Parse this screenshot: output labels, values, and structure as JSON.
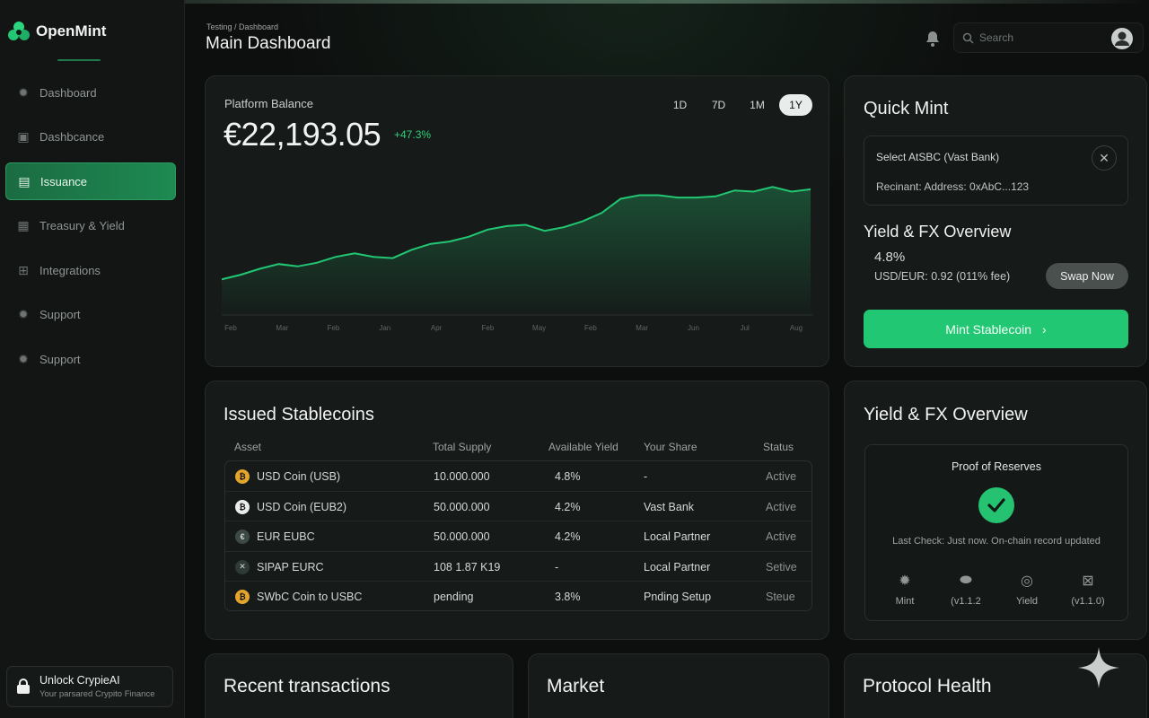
{
  "app": {
    "name": "OpenMint"
  },
  "sidebar": {
    "items": [
      {
        "label": "Dashboard",
        "icon": "gear-icon"
      },
      {
        "label": "Dashbcance",
        "icon": "wallet-icon"
      },
      {
        "label": "Issuance",
        "icon": "document-icon",
        "active": true
      },
      {
        "label": "Treasury & Yield",
        "icon": "vault-icon"
      },
      {
        "label": "Integrations",
        "icon": "plug-icon"
      },
      {
        "label": "Support",
        "icon": "gear-icon"
      },
      {
        "label": "Support",
        "icon": "gear-icon"
      }
    ],
    "unlock": {
      "title": "Unlock CrypieAI",
      "subtitle": "Your parsared Crypito Finance"
    }
  },
  "header": {
    "breadcrumb": "Testing / Dashboard",
    "title": "Main Dashboard",
    "search_placeholder": "Search"
  },
  "balance": {
    "label": "Platform Balance",
    "value": "€22,193.05",
    "change": "+47.3%",
    "ranges": [
      "1D",
      "7D",
      "1M",
      "1Y"
    ],
    "active_range": "1Y",
    "x_labels": [
      "Feb",
      "Mar",
      "Feb",
      "Jan",
      "Apr",
      "Feb",
      "May",
      "Feb",
      "Mar",
      "Jun",
      "Jul",
      "Aug"
    ]
  },
  "chart_data": {
    "type": "area",
    "title": "Platform Balance",
    "categories": [
      "Feb",
      "Mar",
      "Feb",
      "Jan",
      "Apr",
      "Feb",
      "May",
      "Feb",
      "Mar",
      "Jun",
      "Jul",
      "Aug"
    ],
    "points": [
      30,
      34,
      39,
      43,
      41,
      44,
      49,
      52,
      49,
      48,
      55,
      60,
      62,
      66,
      72,
      75,
      76,
      71,
      74,
      79,
      86,
      98,
      101,
      101,
      99,
      99,
      100,
      105,
      104,
      108,
      104,
      106
    ],
    "color": "#22c773"
  },
  "quick_mint": {
    "title": "Quick Mint",
    "select_label": "Select AtSBC (Vast Bank)",
    "recipient": "Recinant: Address: 0xAbC...123",
    "yield_title": "Yield & FX Overview",
    "yield_rate": "4.8%",
    "fx_rate": "USD/EUR: 0.92 (011% fee)",
    "swap_label": "Swap Now",
    "mint_label": "Mint Stablecoin"
  },
  "issued": {
    "title": "Issued Stablecoins",
    "columns": [
      "Asset",
      "Total Supply",
      "Available Yield",
      "Your Share",
      "Status"
    ],
    "rows": [
      {
        "asset": "USD Coin (USB)",
        "supply": "10.000.000",
        "yield": "4.8%",
        "share": "-",
        "status": "Active",
        "coin_color": "#e3a52c",
        "coin_glyph": "₿"
      },
      {
        "asset": "USD Coin (EUB2)",
        "supply": "50.000.000",
        "yield": "4.2%",
        "share": "Vast Bank",
        "status": "Active",
        "coin_color": "#e9ecea",
        "coin_glyph": "₿"
      },
      {
        "asset": "EUR EUBC",
        "supply": "50.000.000",
        "yield": "4.2%",
        "share": "Local Partner",
        "status": "Active",
        "coin_color": "#3d4a44",
        "coin_glyph": "€"
      },
      {
        "asset": "SIPAP EURC",
        "supply": "108 1.87 K19",
        "yield": "-",
        "share": "Local Partner",
        "status": "Setive",
        "coin_color": "#2e3b35",
        "coin_glyph": "✕"
      },
      {
        "asset": "SWbC Coin to USBC",
        "supply": "pending",
        "yield": "3.8%",
        "share": "Pnding Setup",
        "status": "Steue",
        "coin_color": "#e3a52c",
        "coin_glyph": "₿"
      }
    ]
  },
  "yield_fx": {
    "title": "Yield & FX Overview",
    "proof_title": "Proof of Reserves",
    "last_check": "Last Check: Just now. On-chain record updated",
    "items": [
      {
        "label": "Mint",
        "icon": "gear-icon"
      },
      {
        "label": "(v1.1.2",
        "icon": "coin-icon"
      },
      {
        "label": "Yield",
        "icon": "target-icon"
      },
      {
        "label": "(v1.1.0)",
        "icon": "grid-icon"
      }
    ]
  },
  "bottom": {
    "recent": "Recent transactions",
    "market": "Market",
    "health": "Protocol Health"
  }
}
